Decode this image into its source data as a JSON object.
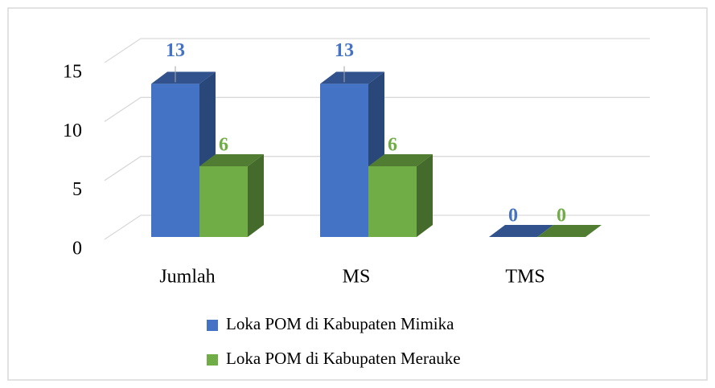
{
  "chart_data": {
    "type": "bar3d",
    "categories": [
      "Jumlah",
      "MS",
      "TMS"
    ],
    "series": [
      {
        "name": "Loka POM di Kabupaten Mimika",
        "color": "#4472c4",
        "values": [
          13,
          13,
          0
        ]
      },
      {
        "name": "Loka POM di Kabupaten Merauke",
        "color": "#70ad47",
        "values": [
          6,
          6,
          0
        ]
      }
    ],
    "ylim": [
      0,
      15
    ],
    "yticks": [
      0,
      5,
      10,
      15
    ],
    "grid": true,
    "legend": "bottom"
  }
}
